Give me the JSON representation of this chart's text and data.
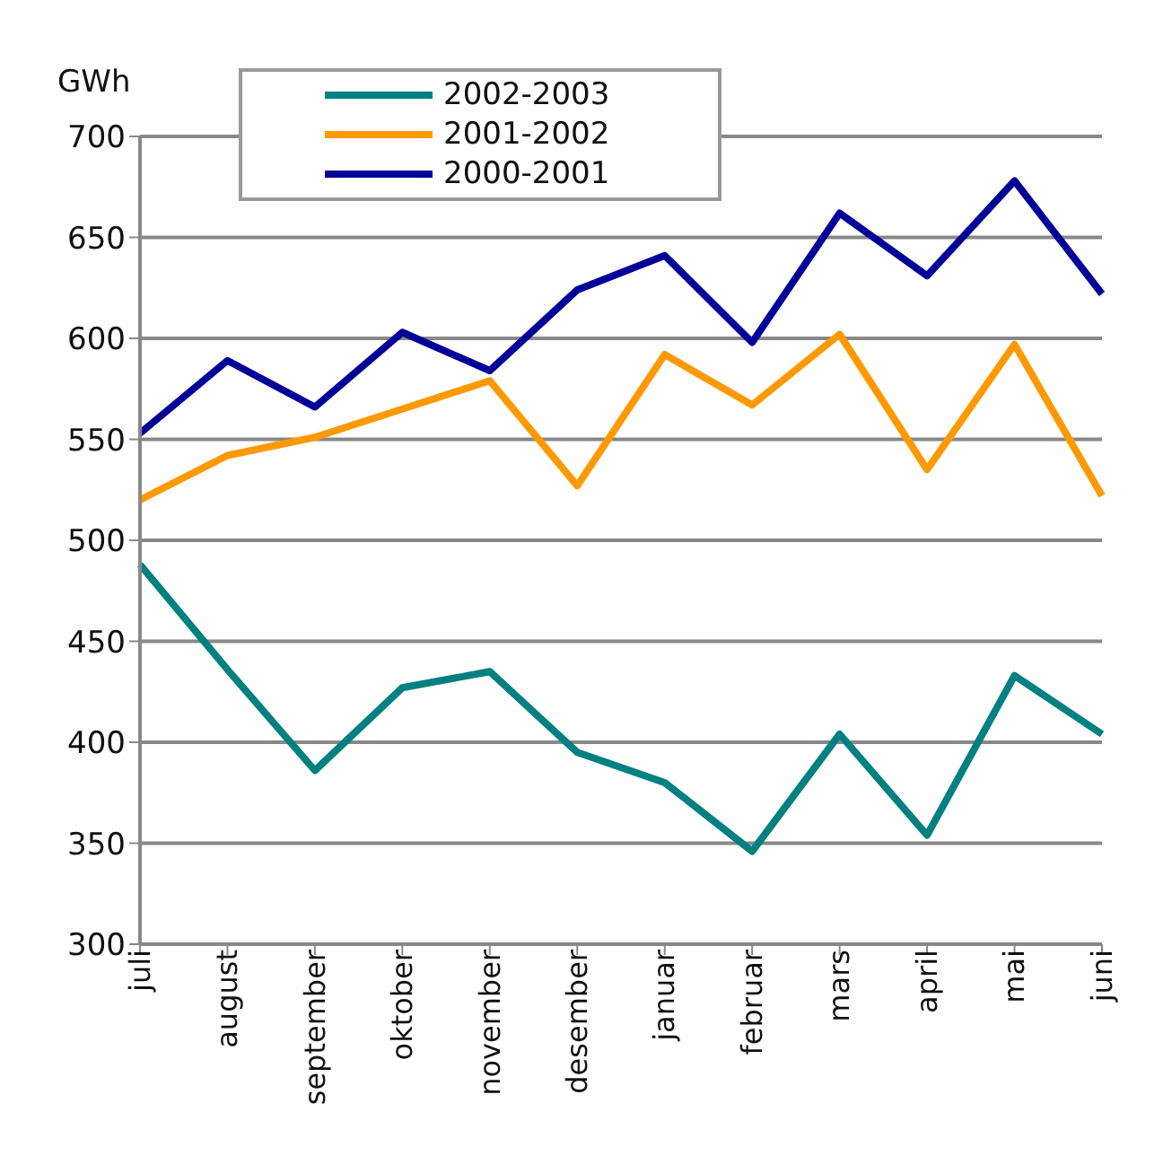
{
  "chart_data": {
    "type": "line",
    "ylabel": "GWh",
    "categories": [
      "juli",
      "august",
      "september",
      "oktober",
      "november",
      "desember",
      "januar",
      "februar",
      "mars",
      "april",
      "mai",
      "juni"
    ],
    "series": [
      {
        "name": "2002-2003",
        "color": "#008080",
        "values": [
          488,
          436,
          386,
          427,
          435,
          395,
          380,
          346,
          404,
          354,
          433,
          404
        ]
      },
      {
        "name": "2001-2002",
        "color": "#ff9900",
        "values": [
          520,
          542,
          551,
          565,
          579,
          527,
          592,
          567,
          602,
          535,
          597,
          522
        ]
      },
      {
        "name": "2000-2001",
        "color": "#000099",
        "values": [
          553,
          589,
          566,
          603,
          584,
          624,
          641,
          598,
          662,
          631,
          678,
          622
        ]
      }
    ],
    "ylim": [
      300,
      700
    ],
    "yticks": [
      300,
      350,
      400,
      450,
      500,
      550,
      600,
      650,
      700
    ],
    "grid": "y",
    "legend": "top left",
    "marker": "none",
    "line_style": "solid"
  }
}
